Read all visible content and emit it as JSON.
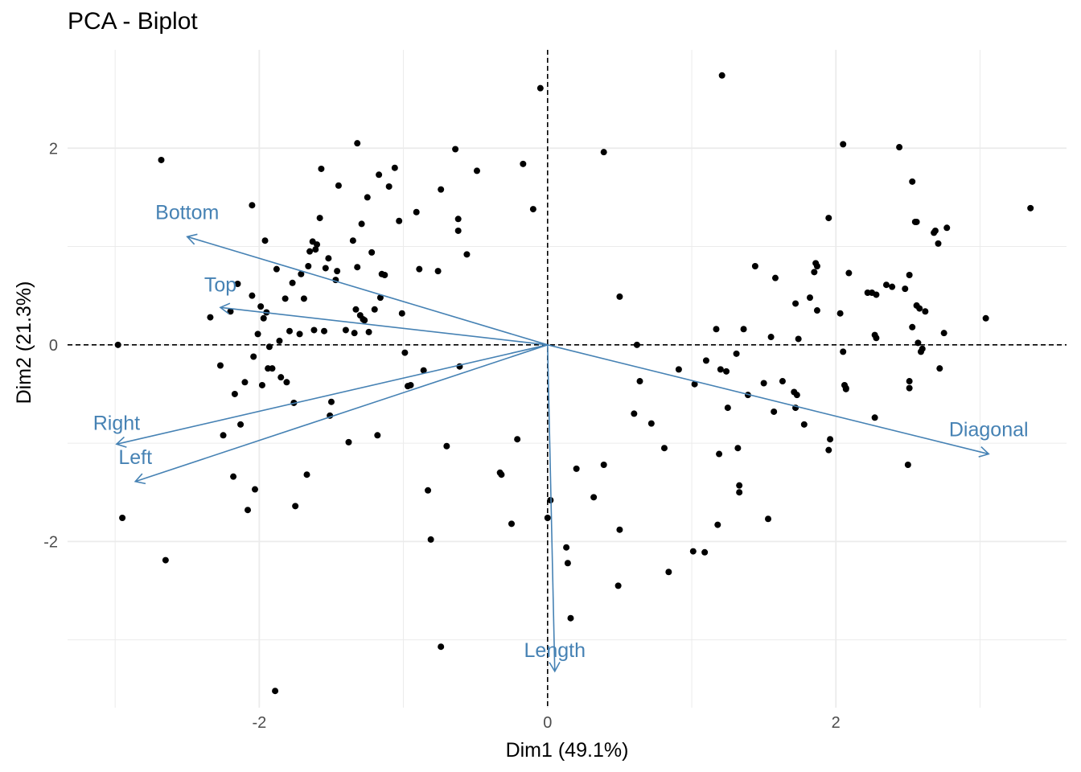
{
  "chart_data": {
    "type": "scatter",
    "title": "PCA - Biplot",
    "xlabel": "Dim1 (49.1%)",
    "ylabel": "Dim2 (21.3%)",
    "xlim": [
      -3.33,
      3.6
    ],
    "ylim": [
      -3.69,
      3.0
    ],
    "x_ticks": [
      -2,
      0,
      2
    ],
    "x_tick_labels": [
      "-2",
      "0",
      "2"
    ],
    "y_ticks": [
      -2,
      0,
      2
    ],
    "y_tick_labels": [
      "-2",
      "0",
      "2"
    ],
    "grid": true,
    "reference_lines": {
      "x": 0,
      "y": 0,
      "style": "dashed"
    },
    "colors": {
      "points": "#000000",
      "vectors": "#4682B4",
      "grid": "#ebebeb",
      "refline": "#000000"
    },
    "points": [
      {
        "x": -2.68,
        "y": 1.88
      },
      {
        "x": -2.98,
        "y": 0.0
      },
      {
        "x": -2.95,
        "y": -1.76
      },
      {
        "x": -2.65,
        "y": -2.19
      },
      {
        "x": -2.34,
        "y": 0.28
      },
      {
        "x": -2.27,
        "y": -0.21
      },
      {
        "x": -2.25,
        "y": -0.92
      },
      {
        "x": -2.18,
        "y": -1.34
      },
      {
        "x": -2.2,
        "y": 0.34
      },
      {
        "x": -2.17,
        "y": -0.5
      },
      {
        "x": -2.15,
        "y": 0.62
      },
      {
        "x": -2.13,
        "y": -0.81
      },
      {
        "x": -2.1,
        "y": -0.38
      },
      {
        "x": -2.08,
        "y": -1.68
      },
      {
        "x": -2.05,
        "y": 1.42
      },
      {
        "x": -2.05,
        "y": 0.5
      },
      {
        "x": -2.04,
        "y": -0.12
      },
      {
        "x": -2.03,
        "y": -1.47
      },
      {
        "x": -2.01,
        "y": 0.11
      },
      {
        "x": -1.99,
        "y": 0.39
      },
      {
        "x": -1.98,
        "y": -0.41
      },
      {
        "x": -1.97,
        "y": 0.27
      },
      {
        "x": -1.96,
        "y": 1.06
      },
      {
        "x": -1.95,
        "y": 0.33
      },
      {
        "x": -1.94,
        "y": -0.24
      },
      {
        "x": -1.93,
        "y": -0.02
      },
      {
        "x": -1.91,
        "y": -0.24
      },
      {
        "x": -1.88,
        "y": 0.77
      },
      {
        "x": -1.89,
        "y": -3.52
      },
      {
        "x": -1.86,
        "y": 0.04
      },
      {
        "x": -1.85,
        "y": -0.33
      },
      {
        "x": -1.81,
        "y": -0.38
      },
      {
        "x": -1.82,
        "y": 0.47
      },
      {
        "x": -1.79,
        "y": 0.14
      },
      {
        "x": -1.77,
        "y": 0.63
      },
      {
        "x": -1.76,
        "y": -0.59
      },
      {
        "x": -1.75,
        "y": -1.64
      },
      {
        "x": -1.72,
        "y": 0.11
      },
      {
        "x": -1.71,
        "y": 0.72
      },
      {
        "x": -1.69,
        "y": 0.47
      },
      {
        "x": -1.67,
        "y": -1.32
      },
      {
        "x": -1.66,
        "y": 0.8
      },
      {
        "x": -1.65,
        "y": 0.95
      },
      {
        "x": -1.63,
        "y": 1.05
      },
      {
        "x": -1.62,
        "y": 0.15
      },
      {
        "x": -1.61,
        "y": 0.97
      },
      {
        "x": -1.6,
        "y": 1.02
      },
      {
        "x": -1.58,
        "y": 1.29
      },
      {
        "x": -1.57,
        "y": 1.79
      },
      {
        "x": -1.55,
        "y": 0.14
      },
      {
        "x": -1.54,
        "y": 0.78
      },
      {
        "x": -1.52,
        "y": 0.88
      },
      {
        "x": -1.51,
        "y": -0.72
      },
      {
        "x": -1.5,
        "y": -0.58
      },
      {
        "x": -1.47,
        "y": 0.66
      },
      {
        "x": -1.46,
        "y": 0.75
      },
      {
        "x": -1.45,
        "y": 1.62
      },
      {
        "x": -1.4,
        "y": 0.15
      },
      {
        "x": -1.38,
        "y": -0.99
      },
      {
        "x": -1.35,
        "y": 1.06
      },
      {
        "x": -1.34,
        "y": 0.12
      },
      {
        "x": -1.33,
        "y": 0.36
      },
      {
        "x": -1.32,
        "y": 0.79
      },
      {
        "x": -1.32,
        "y": 2.05
      },
      {
        "x": -1.3,
        "y": 0.3
      },
      {
        "x": -1.29,
        "y": 1.23
      },
      {
        "x": -1.28,
        "y": 0.26
      },
      {
        "x": -1.27,
        "y": 0.25
      },
      {
        "x": -1.25,
        "y": 1.5
      },
      {
        "x": -1.24,
        "y": 0.13
      },
      {
        "x": -1.22,
        "y": 0.94
      },
      {
        "x": -1.2,
        "y": 0.36
      },
      {
        "x": -1.18,
        "y": -0.92
      },
      {
        "x": -1.17,
        "y": 1.73
      },
      {
        "x": -1.16,
        "y": 0.48
      },
      {
        "x": -1.15,
        "y": 0.72
      },
      {
        "x": -1.13,
        "y": 0.71
      },
      {
        "x": -1.1,
        "y": 1.61
      },
      {
        "x": -1.06,
        "y": 1.8
      },
      {
        "x": -1.03,
        "y": 1.26
      },
      {
        "x": -1.01,
        "y": 0.32
      },
      {
        "x": -0.99,
        "y": -0.08
      },
      {
        "x": -0.97,
        "y": -0.42
      },
      {
        "x": -0.95,
        "y": -0.41
      },
      {
        "x": -0.91,
        "y": 1.35
      },
      {
        "x": -0.89,
        "y": 0.77
      },
      {
        "x": -0.86,
        "y": -0.26
      },
      {
        "x": -0.83,
        "y": -1.48
      },
      {
        "x": -0.81,
        "y": -1.98
      },
      {
        "x": -0.76,
        "y": 0.75
      },
      {
        "x": -0.74,
        "y": 1.58
      },
      {
        "x": -0.74,
        "y": -3.07
      },
      {
        "x": -0.7,
        "y": -1.03
      },
      {
        "x": -0.64,
        "y": 1.99
      },
      {
        "x": -0.62,
        "y": 1.28
      },
      {
        "x": -0.62,
        "y": 1.16
      },
      {
        "x": -0.61,
        "y": -0.22
      },
      {
        "x": -0.56,
        "y": 0.92
      },
      {
        "x": -0.49,
        "y": 1.77
      },
      {
        "x": -0.33,
        "y": -1.3
      },
      {
        "x": -0.32,
        "y": -1.32
      },
      {
        "x": -0.25,
        "y": -1.82
      },
      {
        "x": -0.21,
        "y": -0.96
      },
      {
        "x": -0.17,
        "y": 1.84
      },
      {
        "x": -0.1,
        "y": 1.38
      },
      {
        "x": -0.05,
        "y": 2.61
      },
      {
        "x": 0.0,
        "y": -1.76
      },
      {
        "x": 0.02,
        "y": -1.58
      },
      {
        "x": 0.13,
        "y": -2.06
      },
      {
        "x": 0.14,
        "y": -2.22
      },
      {
        "x": 0.16,
        "y": -2.78
      },
      {
        "x": 0.2,
        "y": -1.26
      },
      {
        "x": 0.32,
        "y": -1.55
      },
      {
        "x": 0.39,
        "y": 1.96
      },
      {
        "x": 0.39,
        "y": -1.22
      },
      {
        "x": 0.49,
        "y": -2.45
      },
      {
        "x": 0.5,
        "y": -1.88
      },
      {
        "x": 0.5,
        "y": 0.49
      },
      {
        "x": 0.6,
        "y": -0.7
      },
      {
        "x": 0.62,
        "y": 0.0
      },
      {
        "x": 0.64,
        "y": -0.37
      },
      {
        "x": 0.72,
        "y": -0.8
      },
      {
        "x": 0.81,
        "y": -1.05
      },
      {
        "x": 0.84,
        "y": -2.31
      },
      {
        "x": 0.91,
        "y": -0.25
      },
      {
        "x": 1.01,
        "y": -2.1
      },
      {
        "x": 1.02,
        "y": -0.4
      },
      {
        "x": 1.09,
        "y": -2.11
      },
      {
        "x": 1.1,
        "y": -0.16
      },
      {
        "x": 1.17,
        "y": 0.16
      },
      {
        "x": 1.18,
        "y": -1.83
      },
      {
        "x": 1.19,
        "y": -1.11
      },
      {
        "x": 1.2,
        "y": -0.25
      },
      {
        "x": 1.21,
        "y": 2.74
      },
      {
        "x": 1.24,
        "y": -0.27
      },
      {
        "x": 1.25,
        "y": -0.64
      },
      {
        "x": 1.31,
        "y": -0.09
      },
      {
        "x": 1.32,
        "y": -1.05
      },
      {
        "x": 1.33,
        "y": -1.43
      },
      {
        "x": 1.33,
        "y": -1.5
      },
      {
        "x": 1.36,
        "y": 0.16
      },
      {
        "x": 1.39,
        "y": -0.51
      },
      {
        "x": 1.44,
        "y": 0.8
      },
      {
        "x": 1.5,
        "y": -0.39
      },
      {
        "x": 1.53,
        "y": -1.77
      },
      {
        "x": 1.55,
        "y": 0.08
      },
      {
        "x": 1.57,
        "y": -0.68
      },
      {
        "x": 1.58,
        "y": 0.68
      },
      {
        "x": 1.63,
        "y": -0.37
      },
      {
        "x": 1.71,
        "y": -0.48
      },
      {
        "x": 1.72,
        "y": 0.42
      },
      {
        "x": 1.72,
        "y": -0.64
      },
      {
        "x": 1.74,
        "y": 0.06
      },
      {
        "x": 1.78,
        "y": -0.81
      },
      {
        "x": 1.82,
        "y": 0.48
      },
      {
        "x": 1.85,
        "y": 0.74
      },
      {
        "x": 1.86,
        "y": 0.83
      },
      {
        "x": 1.87,
        "y": 0.35
      },
      {
        "x": 1.87,
        "y": 0.8
      },
      {
        "x": 1.95,
        "y": 1.29
      },
      {
        "x": 1.95,
        "y": -1.07
      },
      {
        "x": 1.96,
        "y": -0.96
      },
      {
        "x": 2.03,
        "y": 0.32
      },
      {
        "x": 2.05,
        "y": 2.04
      },
      {
        "x": 2.05,
        "y": -0.07
      },
      {
        "x": 2.06,
        "y": -0.41
      },
      {
        "x": 2.07,
        "y": -0.45
      },
      {
        "x": 2.09,
        "y": 0.73
      },
      {
        "x": 2.22,
        "y": 0.53
      },
      {
        "x": 2.25,
        "y": 0.53
      },
      {
        "x": 2.27,
        "y": 0.1
      },
      {
        "x": 2.27,
        "y": -0.74
      },
      {
        "x": 2.28,
        "y": 0.07
      },
      {
        "x": 2.35,
        "y": 0.61
      },
      {
        "x": 2.39,
        "y": 0.59
      },
      {
        "x": 2.44,
        "y": 2.01
      },
      {
        "x": 2.48,
        "y": 0.57
      },
      {
        "x": 2.5,
        "y": -1.22
      },
      {
        "x": 2.51,
        "y": 0.71
      },
      {
        "x": 2.51,
        "y": -0.44
      },
      {
        "x": 2.51,
        "y": -0.37
      },
      {
        "x": 2.53,
        "y": 0.18
      },
      {
        "x": 2.53,
        "y": 1.66
      },
      {
        "x": 2.55,
        "y": 1.25
      },
      {
        "x": 2.56,
        "y": 1.25
      },
      {
        "x": 2.56,
        "y": 0.4
      },
      {
        "x": 2.57,
        "y": 0.02
      },
      {
        "x": 2.58,
        "y": 0.37
      },
      {
        "x": 2.59,
        "y": -0.07
      },
      {
        "x": 2.6,
        "y": -0.04
      },
      {
        "x": 2.62,
        "y": 0.34
      },
      {
        "x": 2.68,
        "y": 1.14
      },
      {
        "x": 2.69,
        "y": 1.16
      },
      {
        "x": 2.71,
        "y": 1.03
      },
      {
        "x": 2.72,
        "y": -0.24
      },
      {
        "x": 2.75,
        "y": 0.12
      },
      {
        "x": 2.77,
        "y": 1.19
      },
      {
        "x": 3.04,
        "y": 0.27
      },
      {
        "x": 3.35,
        "y": 1.39
      },
      {
        "x": 2.07,
        "y": -0.44
      },
      {
        "x": 1.73,
        "y": -0.51
      },
      {
        "x": 2.28,
        "y": 0.51
      }
    ],
    "variables": [
      {
        "name": "Diagonal",
        "x": 3.06,
        "y": -1.11
      },
      {
        "name": "Length",
        "x": 0.05,
        "y": -3.32
      },
      {
        "name": "Left",
        "x": -2.86,
        "y": -1.39
      },
      {
        "name": "Right",
        "x": -2.99,
        "y": -1.01
      },
      {
        "name": "Bottom",
        "x": -2.5,
        "y": 1.1
      },
      {
        "name": "Top",
        "x": -2.27,
        "y": 0.38
      }
    ]
  }
}
